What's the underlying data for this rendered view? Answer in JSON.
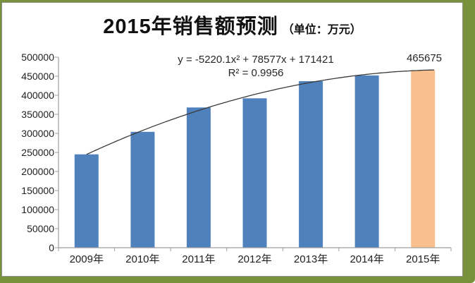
{
  "title": {
    "main": "2015年销售额预测",
    "unit": "（单位：万元）"
  },
  "annotation": {
    "equation": "y = -5220.1x² + 78577x + 171421",
    "r_squared": "R² = 0.9956"
  },
  "chart_data": {
    "type": "bar",
    "title": "2015年销售额预测（单位：万元）",
    "categories": [
      "2009年",
      "2010年",
      "2011年",
      "2012年",
      "2013年",
      "2014年",
      "2015年"
    ],
    "values": [
      245000,
      304000,
      368000,
      392000,
      437000,
      452000,
      465675
    ],
    "bar_colors": [
      "#4F81BD",
      "#4F81BD",
      "#4F81BD",
      "#4F81BD",
      "#4F81BD",
      "#4F81BD",
      "#FABF8F"
    ],
    "highlight_index": 6,
    "highlight_label": "465675",
    "trendline": {
      "kind": "polynomial",
      "order": 2,
      "coefficients": [
        -5220.1,
        78577,
        171421
      ],
      "equation": "y = -5220.1x² + 78577x + 171421",
      "r2": 0.9956,
      "color": "#3a3a3a"
    },
    "y_axis": {
      "min": 0,
      "max": 500000,
      "step": 50000,
      "ticks": [
        "0",
        "50000",
        "100000",
        "150000",
        "200000",
        "250000",
        "300000",
        "350000",
        "400000",
        "450000",
        "500000"
      ]
    },
    "xlabel": "",
    "ylabel": "",
    "gridlines": false,
    "legend_position": "none"
  },
  "colors": {
    "bar_blue": "#4F81BD",
    "bar_orange": "#FABF8F",
    "frame_olive": "#78923C",
    "axis_gray": "#9e9e9e",
    "text": "#1f1f1f"
  }
}
